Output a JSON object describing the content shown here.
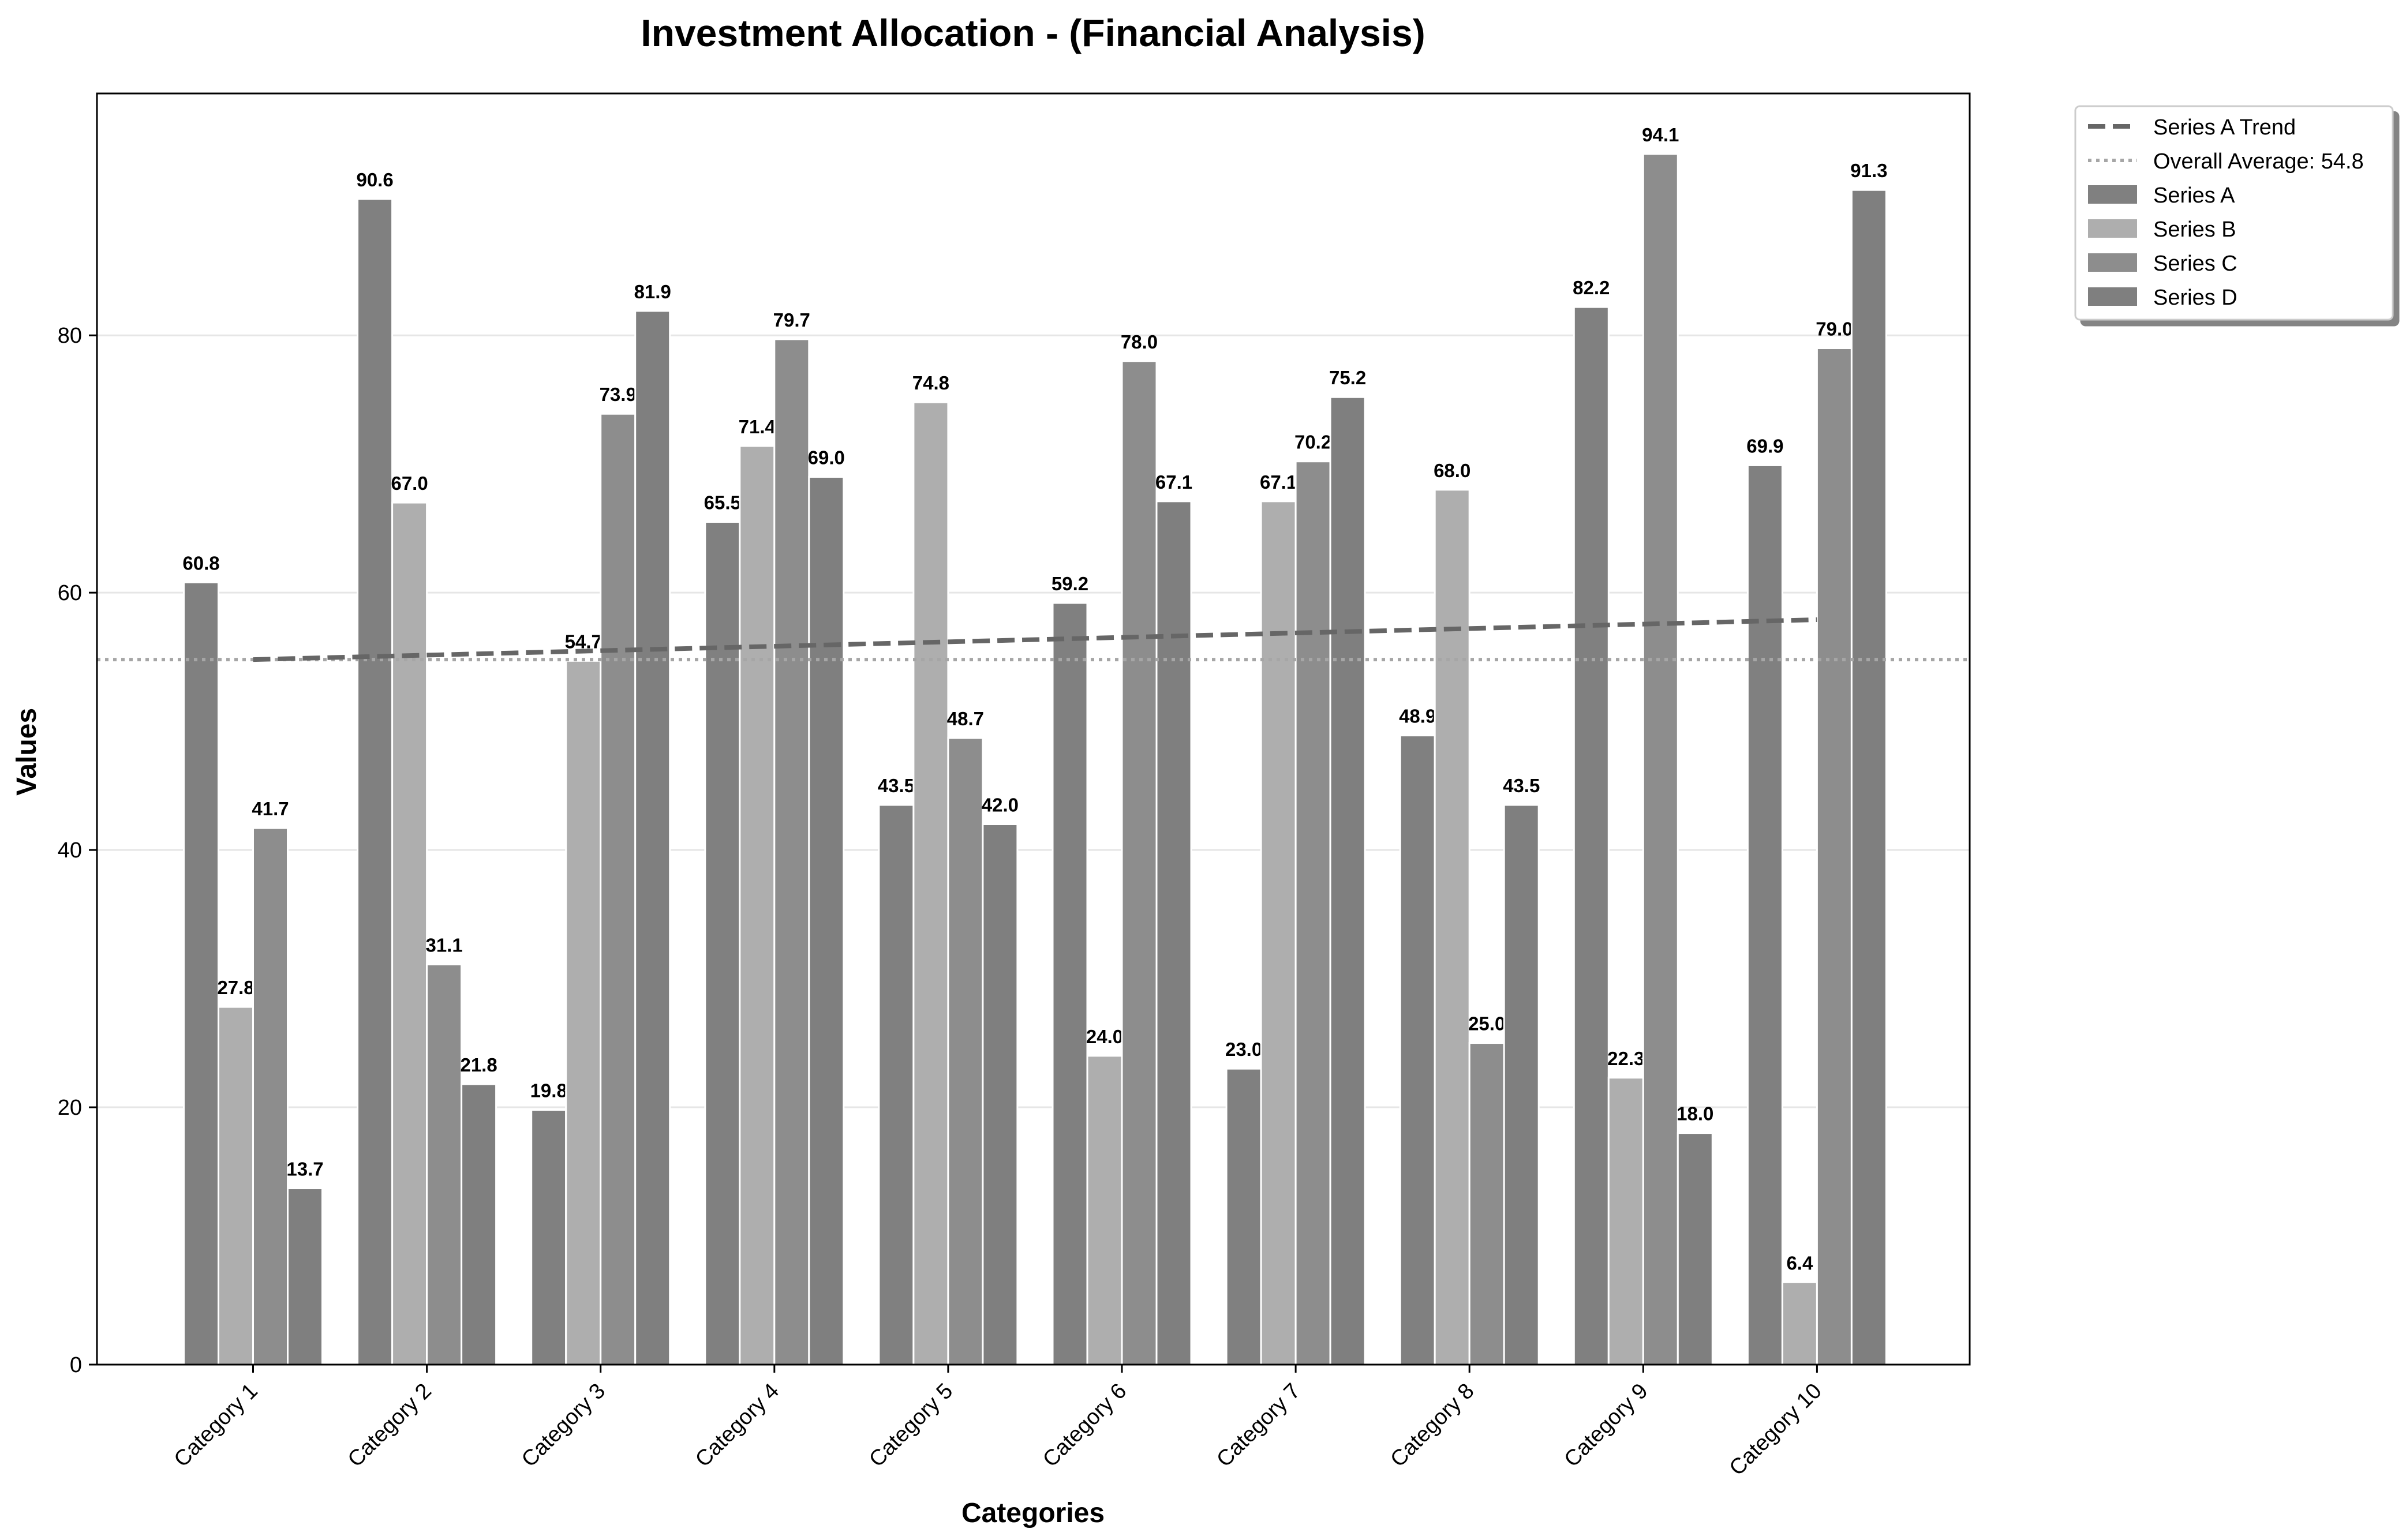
{
  "chart_data": {
    "type": "bar",
    "title": "Investment Allocation - (Financial Analysis)",
    "xlabel": "Categories",
    "ylabel": "Values",
    "ylim": [
      0,
      98.8
    ],
    "yticks": [
      0,
      20,
      40,
      60,
      80
    ],
    "grid": true,
    "legend_position": "outside-top-right",
    "categories": [
      "Category 1",
      "Category 2",
      "Category 3",
      "Category 4",
      "Category 5",
      "Category 6",
      "Category 7",
      "Category 8",
      "Category 9",
      "Category 10"
    ],
    "series": [
      {
        "name": "Series A",
        "color": "#808080",
        "values": [
          60.8,
          90.6,
          19.8,
          65.5,
          43.5,
          59.2,
          23.0,
          48.9,
          82.2,
          69.9
        ],
        "labels": [
          "60.8",
          "90.6",
          "19.8",
          "65.5",
          "43.5",
          "59.2",
          "23.0",
          "48.9",
          "82.2",
          "69.9"
        ]
      },
      {
        "name": "Series B",
        "color": "#aeaeae",
        "values": [
          27.8,
          67.0,
          54.7,
          71.4,
          74.8,
          24.0,
          67.1,
          68.0,
          22.3,
          6.4
        ],
        "labels": [
          "27.8",
          "67.0",
          "54.7",
          "71.4",
          "74.8",
          "24.0",
          "67.1",
          "68.0",
          "22.3",
          "6.4"
        ]
      },
      {
        "name": "Series C",
        "color": "#8d8d8d",
        "values": [
          41.7,
          31.1,
          73.9,
          79.7,
          48.7,
          78.0,
          70.2,
          25.0,
          94.1,
          79.0
        ],
        "labels": [
          "41.7",
          "31.1",
          "73.9",
          "79.7",
          "48.7",
          "78.0",
          "70.2",
          "25.0",
          "94.1",
          "79.0"
        ]
      },
      {
        "name": "Series D",
        "color": "#7f7f7f",
        "values": [
          13.7,
          21.8,
          81.9,
          69.0,
          42.0,
          67.1,
          75.2,
          43.5,
          18.0,
          91.3
        ],
        "labels": [
          "13.7",
          "21.8",
          "81.9",
          "69.0",
          "42.0",
          "67.1",
          "75.2",
          "43.5",
          "18.0",
          "91.3"
        ]
      }
    ],
    "trend_line": {
      "name": "Series A Trend",
      "color": "#666666",
      "start": 54.8,
      "end": 57.9
    },
    "average_line": {
      "name": "Overall Average: 54.8",
      "color": "#a6a6a6",
      "value": 54.8
    }
  }
}
